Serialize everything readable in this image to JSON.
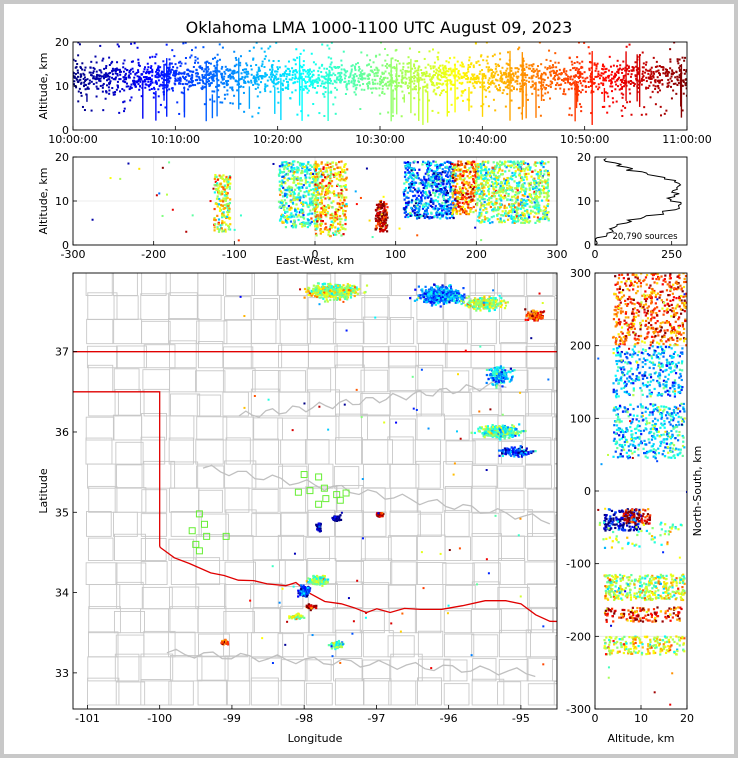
{
  "title": "Oklahoma LMA 1000-1100 UTC August 09, 2023",
  "colors": {
    "time_scale": [
      "#00007f",
      "#0000ff",
      "#007fff",
      "#00ffff",
      "#7fff7f",
      "#ffff00",
      "#ff7f00",
      "#ff0000",
      "#7f0000"
    ],
    "state_border": "#e00000",
    "county_lines": "#c8c8c8",
    "station_marker": "#66ee33",
    "histogram_line": "#000000"
  },
  "chart_data": [
    {
      "id": "time_height",
      "type": "scatter",
      "ylabel": "Altitude, km",
      "xlim": [
        "10:00:00",
        "11:00:00"
      ],
      "ylim": [
        0,
        20
      ],
      "x_ticks": [
        "10:00:00",
        "10:10:00",
        "10:20:00",
        "10:30:00",
        "10:40:00",
        "10:50:00",
        "11:00:00"
      ],
      "y_ticks": [
        "0",
        "10",
        "20"
      ],
      "color_by": "time"
    },
    {
      "id": "ew_height",
      "type": "scatter",
      "xlabel": "East-West, km",
      "ylabel": "Altitude, km",
      "xlim": [
        -300,
        300
      ],
      "ylim": [
        0,
        20
      ],
      "x_ticks": [
        "-300",
        "-200",
        "-100",
        "0",
        "100",
        "200",
        "300"
      ],
      "y_ticks": [
        "0",
        "10",
        "20"
      ],
      "clusters": [
        {
          "x": [
            -125,
            -105
          ],
          "z": [
            3,
            16
          ],
          "time": 0.6
        },
        {
          "x": [
            -45,
            5
          ],
          "z": [
            4,
            19
          ],
          "time": 0.45
        },
        {
          "x": [
            0,
            40
          ],
          "z": [
            2,
            19
          ],
          "time": 0.65
        },
        {
          "x": [
            75,
            90
          ],
          "z": [
            3,
            10
          ],
          "time": 0.95
        },
        {
          "x": [
            110,
            175
          ],
          "z": [
            6,
            19
          ],
          "time": 0.25
        },
        {
          "x": [
            170,
            200
          ],
          "z": [
            7,
            19
          ],
          "time": 0.75
        },
        {
          "x": [
            200,
            290
          ],
          "z": [
            5,
            19
          ],
          "time": 0.5
        }
      ]
    },
    {
      "id": "altitude_histogram",
      "type": "line",
      "xlim": [
        0,
        300
      ],
      "ylim": [
        0,
        20
      ],
      "x_ticks": [
        "0",
        "250"
      ],
      "y_ticks": [
        "0",
        "10",
        "20"
      ],
      "annotation": "20,790 sources",
      "profile": [
        {
          "alt": 0.5,
          "count": 5
        },
        {
          "alt": 1.5,
          "count": 15
        },
        {
          "alt": 2.5,
          "count": 25
        },
        {
          "alt": 3.5,
          "count": 45
        },
        {
          "alt": 4.5,
          "count": 70
        },
        {
          "alt": 5.5,
          "count": 110
        },
        {
          "alt": 6.5,
          "count": 160
        },
        {
          "alt": 7.5,
          "count": 215
        },
        {
          "alt": 8.5,
          "count": 265
        },
        {
          "alt": 9.5,
          "count": 275
        },
        {
          "alt": 10.5,
          "count": 250
        },
        {
          "alt": 11.5,
          "count": 265
        },
        {
          "alt": 12.5,
          "count": 255
        },
        {
          "alt": 13.5,
          "count": 270
        },
        {
          "alt": 14.5,
          "count": 260
        },
        {
          "alt": 15.5,
          "count": 215
        },
        {
          "alt": 16.5,
          "count": 160
        },
        {
          "alt": 17.5,
          "count": 110
        },
        {
          "alt": 18.5,
          "count": 70
        },
        {
          "alt": 19.5,
          "count": 35
        }
      ]
    },
    {
      "id": "plan_view",
      "type": "scatter",
      "xlabel": "Longitude",
      "ylabel": "Latitude",
      "xlim": [
        -101.2,
        -94.5
      ],
      "ylim": [
        32.55,
        37.98
      ],
      "x_ticks": [
        "-101",
        "-100",
        "-99",
        "-98",
        "-97",
        "-96",
        "-95"
      ],
      "y_ticks": [
        "33",
        "34",
        "35",
        "36",
        "37"
      ],
      "stations": [
        {
          "lon": -99.45,
          "lat": 34.98
        },
        {
          "lon": -99.38,
          "lat": 34.85
        },
        {
          "lon": -99.55,
          "lat": 34.77
        },
        {
          "lon": -99.35,
          "lat": 34.7
        },
        {
          "lon": -99.5,
          "lat": 34.6
        },
        {
          "lon": -99.45,
          "lat": 34.52
        },
        {
          "lon": -99.08,
          "lat": 34.7
        },
        {
          "lon": -98.0,
          "lat": 35.47
        },
        {
          "lon": -97.8,
          "lat": 35.44
        },
        {
          "lon": -98.08,
          "lat": 35.25
        },
        {
          "lon": -97.92,
          "lat": 35.27
        },
        {
          "lon": -97.72,
          "lat": 35.3
        },
        {
          "lon": -97.7,
          "lat": 35.17
        },
        {
          "lon": -97.55,
          "lat": 35.22
        },
        {
          "lon": -97.42,
          "lat": 35.24
        },
        {
          "lon": -97.5,
          "lat": 35.15
        },
        {
          "lon": -97.8,
          "lat": 35.1
        }
      ]
    },
    {
      "id": "ns_height",
      "type": "scatter",
      "xlabel": "Altitude, km",
      "ylabel": "North-South, km",
      "xlim": [
        0,
        20
      ],
      "ylim": [
        -300,
        300
      ],
      "x_ticks": [
        "0",
        "10",
        "20"
      ],
      "y_ticks": [
        "-300",
        "-200",
        "-100",
        "0",
        "100",
        "200",
        "300"
      ]
    }
  ]
}
